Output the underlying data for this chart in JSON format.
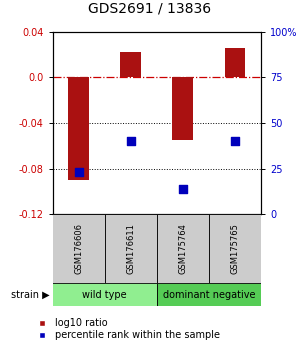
{
  "title": "GDS2691 / 13836",
  "samples": [
    "GSM176606",
    "GSM176611",
    "GSM175764",
    "GSM175765"
  ],
  "log10_ratio": [
    -0.09,
    0.022,
    -0.055,
    0.026
  ],
  "percentile_rank": [
    23,
    40,
    14,
    40
  ],
  "groups": [
    {
      "label": "wild type",
      "samples": [
        0,
        1
      ],
      "color": "#90ee90"
    },
    {
      "label": "dominant negative",
      "samples": [
        2,
        3
      ],
      "color": "#55cc55"
    }
  ],
  "ylim": [
    -0.12,
    0.04
  ],
  "yticks_left": [
    -0.12,
    -0.08,
    -0.04,
    0.0,
    0.04
  ],
  "yticks_right_pct": [
    0,
    25,
    50,
    75,
    100
  ],
  "bar_color": "#aa1111",
  "dot_color": "#0000bb",
  "zero_line_color": "#cc0000",
  "label_color_left": "#cc0000",
  "label_color_right": "#0000cc",
  "legend_bar": "log10 ratio",
  "legend_dot": "percentile rank within the sample",
  "bar_width": 0.4,
  "title_fontsize": 10,
  "tick_fontsize": 7,
  "sample_fontsize": 6,
  "group_fontsize": 7,
  "legend_fontsize": 7
}
